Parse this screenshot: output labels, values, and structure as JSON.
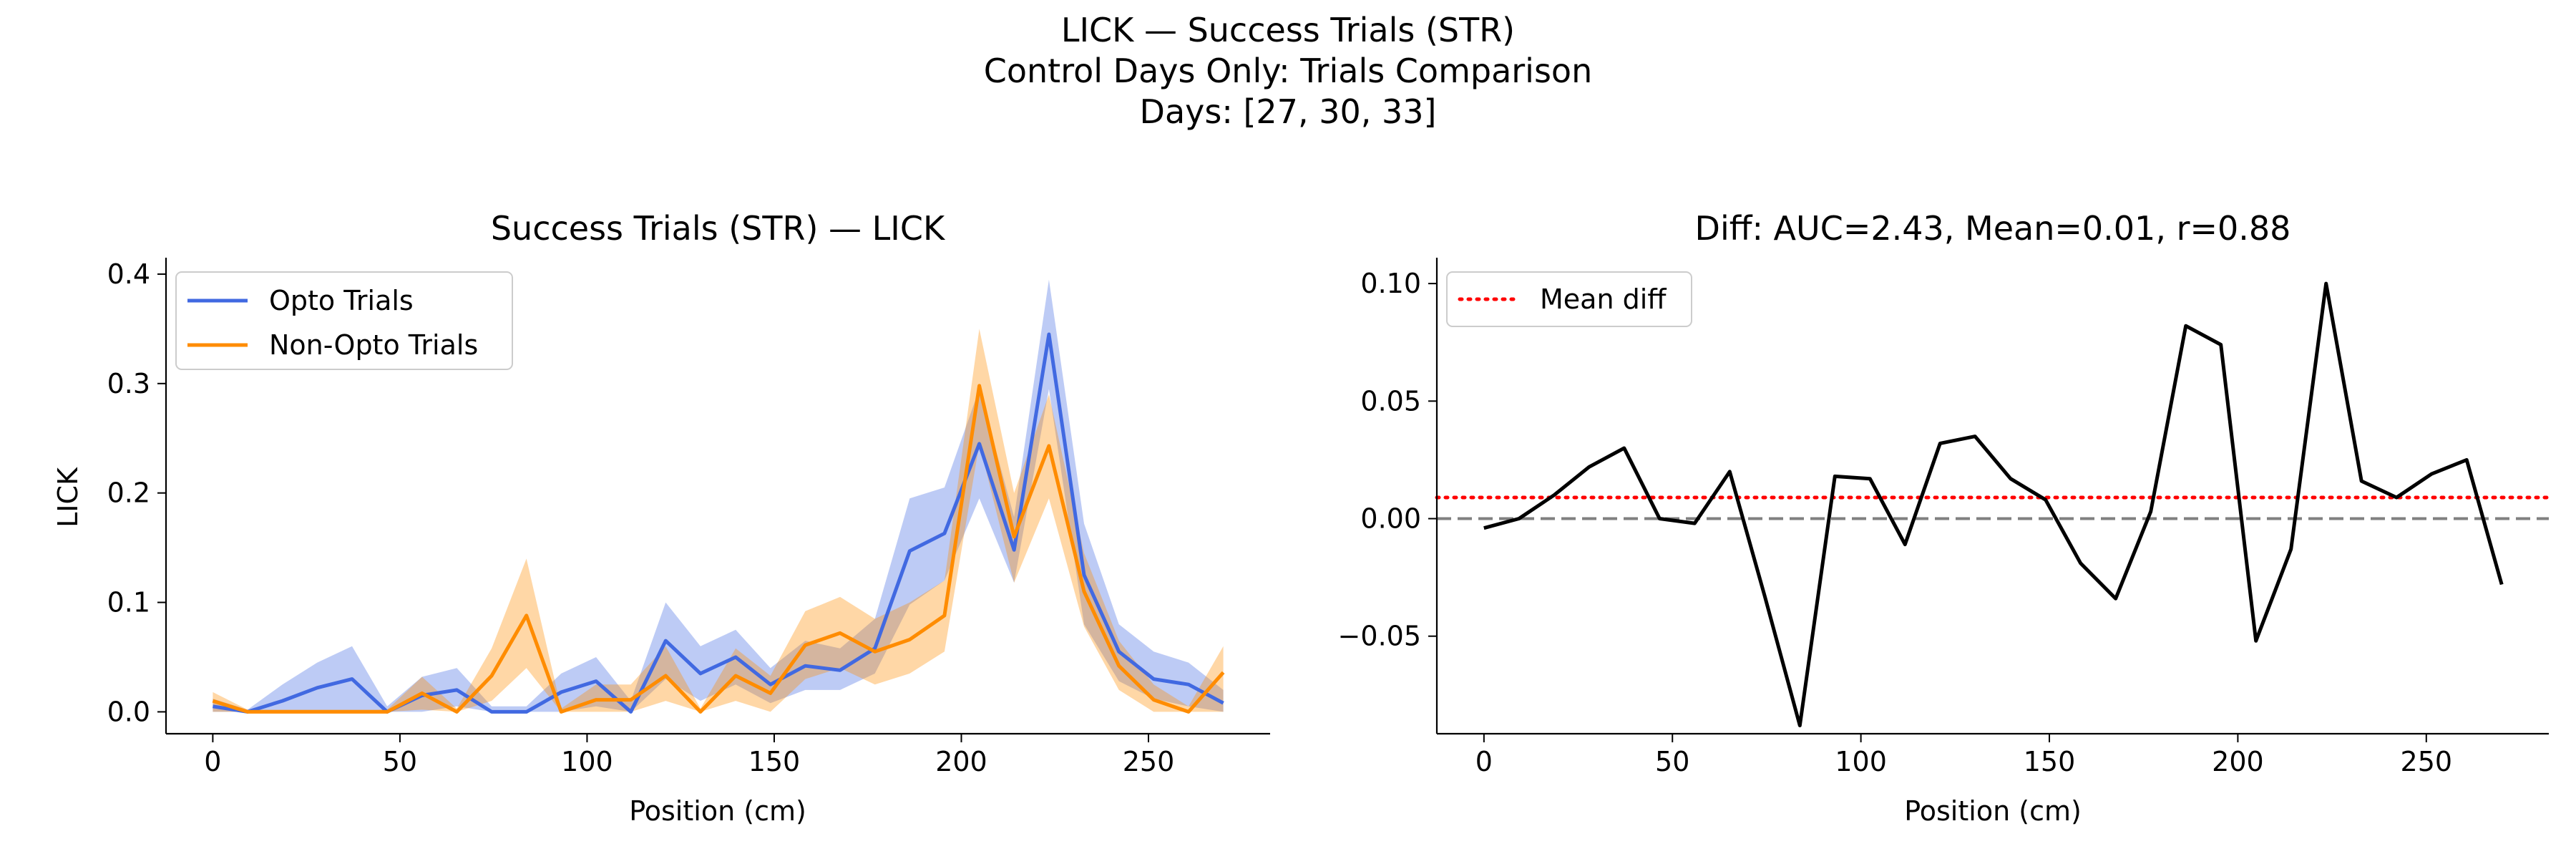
{
  "figure": {
    "suptitle_lines": [
      "LICK — Success Trials (STR)",
      "Control Days Only: Trials Comparison",
      "Days: [27, 30, 33]"
    ]
  },
  "colors": {
    "opto": "#4169E1",
    "non_opto": "#FF8C00",
    "diff": "#000000",
    "mean_diff": "#FF0000",
    "zero_line": "#808080"
  },
  "chart_data": [
    {
      "type": "line",
      "title": "Success Trials (STR) — LICK",
      "xlabel": "Position (cm)",
      "ylabel": "LICK",
      "xlim": [
        -12.5,
        282.5
      ],
      "ylim": [
        -0.02,
        0.415
      ],
      "xticks": [
        0,
        50,
        100,
        150,
        200,
        250
      ],
      "yticks": [
        0.0,
        0.1,
        0.2,
        0.3,
        0.4
      ],
      "legend_position": "upper-left",
      "x": [
        0,
        9.3,
        18.6,
        27.9,
        37.2,
        46.6,
        55.9,
        65.2,
        74.5,
        83.8,
        93.1,
        102.4,
        111.7,
        121.0,
        130.3,
        139.7,
        149.0,
        158.3,
        167.6,
        176.9,
        186.2,
        195.5,
        204.8,
        214.1,
        223.4,
        232.8,
        242.1,
        251.4,
        260.7,
        270.0
      ],
      "series": [
        {
          "name": "Opto Trials",
          "color_key": "opto",
          "values": [
            0.005,
            0.0,
            0.01,
            0.022,
            0.03,
            0.0,
            0.015,
            0.02,
            0.0,
            0.0,
            0.018,
            0.028,
            0.0,
            0.065,
            0.035,
            0.05,
            0.025,
            0.042,
            0.038,
            0.058,
            0.147,
            0.163,
            0.245,
            0.148,
            0.345,
            0.125,
            0.055,
            0.03,
            0.025,
            0.008
          ],
          "lower": [
            0.0,
            0.0,
            0.0,
            0.0,
            0.0,
            0.0,
            0.0,
            0.005,
            0.0,
            0.0,
            0.0,
            0.005,
            0.0,
            0.03,
            0.01,
            0.025,
            0.008,
            0.02,
            0.02,
            0.035,
            0.098,
            0.12,
            0.195,
            0.118,
            0.295,
            0.08,
            0.028,
            0.012,
            0.005,
            0.0
          ],
          "upper": [
            0.012,
            0.002,
            0.025,
            0.045,
            0.06,
            0.005,
            0.032,
            0.04,
            0.005,
            0.005,
            0.035,
            0.05,
            0.01,
            0.1,
            0.06,
            0.075,
            0.04,
            0.065,
            0.058,
            0.085,
            0.195,
            0.205,
            0.295,
            0.178,
            0.395,
            0.172,
            0.08,
            0.055,
            0.045,
            0.02
          ]
        },
        {
          "name": "Non-Opto Trials",
          "color_key": "non_opto",
          "values": [
            0.01,
            0.0,
            0.0,
            0.0,
            0.0,
            0.0,
            0.017,
            0.0,
            0.033,
            0.088,
            0.0,
            0.011,
            0.011,
            0.033,
            0.0,
            0.033,
            0.017,
            0.061,
            0.072,
            0.055,
            0.066,
            0.088,
            0.298,
            0.16,
            0.243,
            0.11,
            0.042,
            0.011,
            0.0,
            0.036
          ],
          "lower": [
            0.0,
            0.0,
            0.0,
            0.0,
            0.0,
            0.0,
            0.002,
            0.0,
            0.01,
            0.04,
            0.0,
            0.0,
            0.0,
            0.01,
            0.0,
            0.01,
            0.0,
            0.03,
            0.04,
            0.025,
            0.035,
            0.055,
            0.245,
            0.118,
            0.195,
            0.078,
            0.02,
            0.0,
            0.0,
            0.0
          ],
          "upper": [
            0.018,
            0.002,
            0.002,
            0.002,
            0.002,
            0.002,
            0.032,
            0.003,
            0.058,
            0.14,
            0.003,
            0.025,
            0.025,
            0.06,
            0.003,
            0.058,
            0.033,
            0.092,
            0.105,
            0.085,
            0.1,
            0.12,
            0.35,
            0.2,
            0.29,
            0.145,
            0.065,
            0.025,
            0.005,
            0.06
          ]
        }
      ]
    },
    {
      "type": "line",
      "title": "Diff: AUC=2.43, Mean=0.01, r=0.88",
      "xlabel": "Position (cm)",
      "ylabel": "",
      "xlim": [
        -12.5,
        282.5
      ],
      "ylim": [
        -0.0915,
        0.111
      ],
      "xticks": [
        0,
        50,
        100,
        150,
        200,
        250
      ],
      "yticks": [
        -0.05,
        0.0,
        0.05,
        0.1
      ],
      "ytick_labels": [
        "−0.05",
        "0.00",
        "0.05",
        "0.10"
      ],
      "legend_position": "upper-left",
      "x": [
        0,
        9.3,
        18.6,
        27.9,
        37.2,
        46.6,
        55.9,
        65.2,
        74.5,
        83.8,
        93.1,
        102.4,
        111.7,
        121.0,
        130.3,
        139.7,
        149.0,
        158.3,
        167.6,
        176.9,
        186.2,
        195.5,
        204.8,
        214.1,
        223.4,
        232.8,
        242.1,
        251.4,
        260.7,
        270.0
      ],
      "series": [
        {
          "name": "",
          "color_key": "diff",
          "values": [
            -0.004,
            0.0,
            0.01,
            0.022,
            0.03,
            0.0,
            -0.002,
            0.02,
            -0.033,
            -0.088,
            0.018,
            0.017,
            -0.011,
            0.032,
            0.035,
            0.017,
            0.008,
            -0.019,
            -0.034,
            0.003,
            0.082,
            0.074,
            -0.052,
            -0.013,
            0.1,
            0.016,
            0.009,
            0.019,
            0.025,
            -0.028
          ]
        }
      ],
      "hlines": [
        {
          "name": "Mean diff",
          "value": 0.009,
          "color_key": "mean_diff",
          "style": "dotted"
        },
        {
          "name": "",
          "value": 0.0,
          "color_key": "zero_line",
          "style": "dashed"
        }
      ]
    }
  ]
}
